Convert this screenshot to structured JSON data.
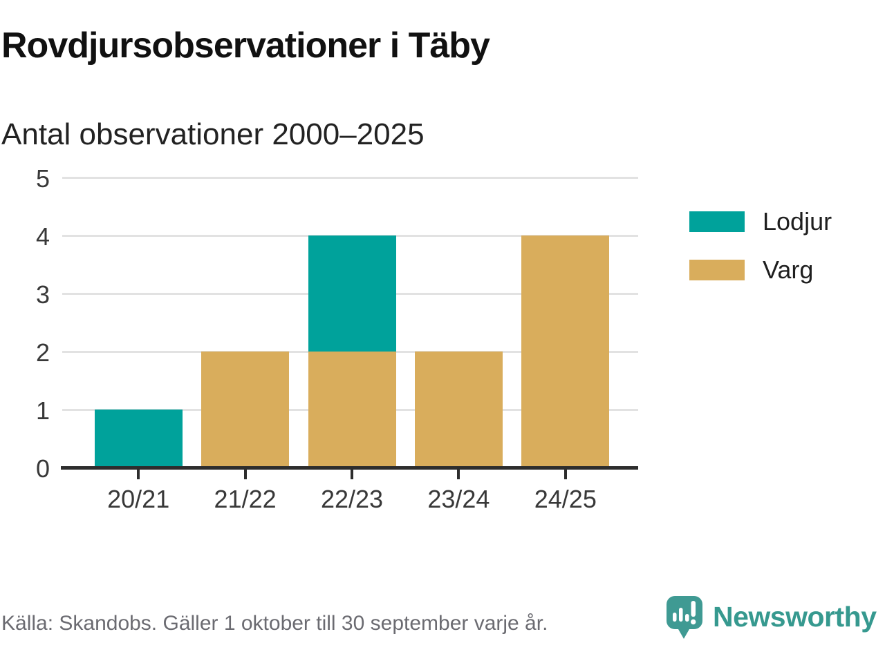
{
  "header": {
    "title": "Rovdjursobservationer i Täby",
    "subtitle": "Antal observationer 2000–2025"
  },
  "chart_data": {
    "type": "bar",
    "stacked": true,
    "title": "Rovdjursobservationer i Täby",
    "subtitle": "Antal observationer 2000–2025",
    "xlabel": "",
    "ylabel": "",
    "categories": [
      "20/21",
      "21/22",
      "22/23",
      "23/24",
      "24/25"
    ],
    "series": [
      {
        "name": "Lodjur",
        "color": "#00a29b",
        "values": [
          1,
          0,
          2,
          0,
          0
        ]
      },
      {
        "name": "Varg",
        "color": "#d9ad5c",
        "values": [
          0,
          2,
          2,
          2,
          4
        ]
      }
    ],
    "stack_order": [
      "Varg",
      "Lodjur"
    ],
    "totals": [
      1,
      2,
      4,
      2,
      4
    ],
    "y_ticks": [
      0,
      1,
      2,
      3,
      4,
      5
    ],
    "ylim": [
      0,
      5
    ],
    "grid": "horizontal",
    "legend_position": "right"
  },
  "legend": {
    "entries": [
      {
        "label": "Lodjur",
        "color": "#00a29b"
      },
      {
        "label": "Varg",
        "color": "#d9ad5c"
      }
    ]
  },
  "footer": {
    "source": "Källa: Skandobs. Gäller 1 oktober till 30 september varje år.",
    "brand": "Newsworthy"
  },
  "colors": {
    "lodjur": "#00a29b",
    "varg": "#d9ad5c",
    "gridline": "#e2e2e2",
    "axis": "#2d2d2d",
    "tick_text": "#383838",
    "source_text": "#6b6b71",
    "brand_teal": "#3f9a93",
    "wordmark_teal": "#36998f"
  },
  "icons": {
    "logo": "newsworthy-pin-barchart-icon"
  }
}
